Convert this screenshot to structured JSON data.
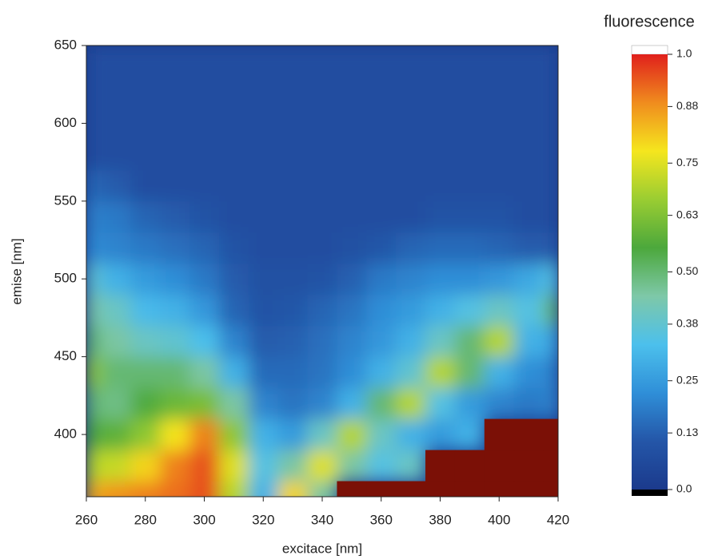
{
  "chart_data": {
    "type": "heatmap",
    "x_label": "excitace [nm]",
    "y_label": "emise [nm]",
    "colorbar_title": "fluorescence",
    "x": [
      260,
      270,
      280,
      290,
      300,
      310,
      320,
      330,
      340,
      350,
      360,
      370,
      380,
      390,
      400,
      410,
      420
    ],
    "y": [
      360,
      380,
      400,
      420,
      440,
      460,
      480,
      500,
      520,
      540,
      560,
      580,
      600,
      620,
      640
    ],
    "z": [
      [
        0.85,
        0.88,
        0.9,
        0.92,
        0.95,
        0.7,
        0.3,
        0.8,
        0.45,
        null,
        null,
        null,
        null,
        null,
        null,
        null,
        null
      ],
      [
        0.7,
        0.72,
        0.8,
        0.9,
        0.95,
        0.75,
        0.35,
        0.45,
        0.75,
        0.45,
        0.35,
        0.4,
        null,
        null,
        null,
        null,
        null
      ],
      [
        0.55,
        0.58,
        0.65,
        0.78,
        0.9,
        0.65,
        0.3,
        0.25,
        0.4,
        0.7,
        0.4,
        0.3,
        0.25,
        0.3,
        null,
        null,
        null
      ],
      [
        0.5,
        0.48,
        0.55,
        0.6,
        0.62,
        0.45,
        0.2,
        0.17,
        0.2,
        0.3,
        0.5,
        0.7,
        0.35,
        0.25,
        0.2,
        0.18,
        0.2
      ],
      [
        0.65,
        0.5,
        0.5,
        0.5,
        0.45,
        0.3,
        0.15,
        0.15,
        0.17,
        0.22,
        0.3,
        0.38,
        0.7,
        0.5,
        0.3,
        0.22,
        0.2
      ],
      [
        0.5,
        0.45,
        0.4,
        0.38,
        0.33,
        0.2,
        0.12,
        0.13,
        0.16,
        0.2,
        0.24,
        0.3,
        0.4,
        0.5,
        0.7,
        0.3,
        0.28
      ],
      [
        0.45,
        0.4,
        0.32,
        0.3,
        0.24,
        0.14,
        0.1,
        0.11,
        0.14,
        0.17,
        0.22,
        0.25,
        0.3,
        0.35,
        0.4,
        0.35,
        0.5
      ],
      [
        0.38,
        0.3,
        0.25,
        0.22,
        0.18,
        0.12,
        0.09,
        0.09,
        0.1,
        0.13,
        0.18,
        0.2,
        0.22,
        0.22,
        0.24,
        0.28,
        0.35
      ],
      [
        0.22,
        0.2,
        0.18,
        0.16,
        0.14,
        0.1,
        0.08,
        0.08,
        0.08,
        0.09,
        0.11,
        0.14,
        0.15,
        0.15,
        0.14,
        0.12,
        0.12
      ],
      [
        0.2,
        0.18,
        0.14,
        0.12,
        0.1,
        0.08,
        0.08,
        0.08,
        0.08,
        0.08,
        0.08,
        0.08,
        0.1,
        0.1,
        0.1,
        0.08,
        0.08
      ],
      [
        0.15,
        0.12,
        0.08,
        0.08,
        0.08,
        0.08,
        0.08,
        0.08,
        0.08,
        0.08,
        0.08,
        0.08,
        0.08,
        0.08,
        0.08,
        0.08,
        0.08
      ],
      [
        0.08,
        0.08,
        0.08,
        0.08,
        0.08,
        0.08,
        0.08,
        0.08,
        0.08,
        0.08,
        0.08,
        0.08,
        0.08,
        0.08,
        0.08,
        0.08,
        0.08
      ],
      [
        0.08,
        0.08,
        0.08,
        0.08,
        0.08,
        0.08,
        0.08,
        0.08,
        0.08,
        0.08,
        0.08,
        0.08,
        0.08,
        0.08,
        0.08,
        0.08,
        0.08
      ],
      [
        0.08,
        0.08,
        0.08,
        0.08,
        0.08,
        0.08,
        0.08,
        0.08,
        0.08,
        0.08,
        0.08,
        0.08,
        0.08,
        0.08,
        0.08,
        0.08,
        0.08
      ],
      [
        0.08,
        0.08,
        0.08,
        0.08,
        0.08,
        0.08,
        0.08,
        0.08,
        0.08,
        0.08,
        0.08,
        0.08,
        0.08,
        0.08,
        0.08,
        0.08,
        0.08
      ]
    ],
    "xlim": [
      260,
      420
    ],
    "ylim": [
      360,
      650
    ],
    "xticks": [
      260,
      280,
      300,
      320,
      340,
      360,
      380,
      400,
      420
    ],
    "yticks": [
      400,
      450,
      500,
      550,
      600,
      650
    ],
    "zlim": [
      0,
      1
    ],
    "zticks": [
      {
        "value": 0,
        "label": "0.0"
      },
      0.13,
      0.25,
      0.38,
      {
        "value": 0.5,
        "label": "0.50"
      },
      0.63,
      0.75,
      0.88,
      {
        "value": 1,
        "label": "1.0"
      }
    ],
    "colormap": [
      "#1b3a8c",
      "#2456a8",
      "#2f8fd8",
      "#4cc0ec",
      "#7ec8a8",
      "#4ca83c",
      "#9acd32",
      "#f5e61e",
      "#f08c1e",
      "#e0201c"
    ],
    "missing_color": "#7b1006"
  }
}
